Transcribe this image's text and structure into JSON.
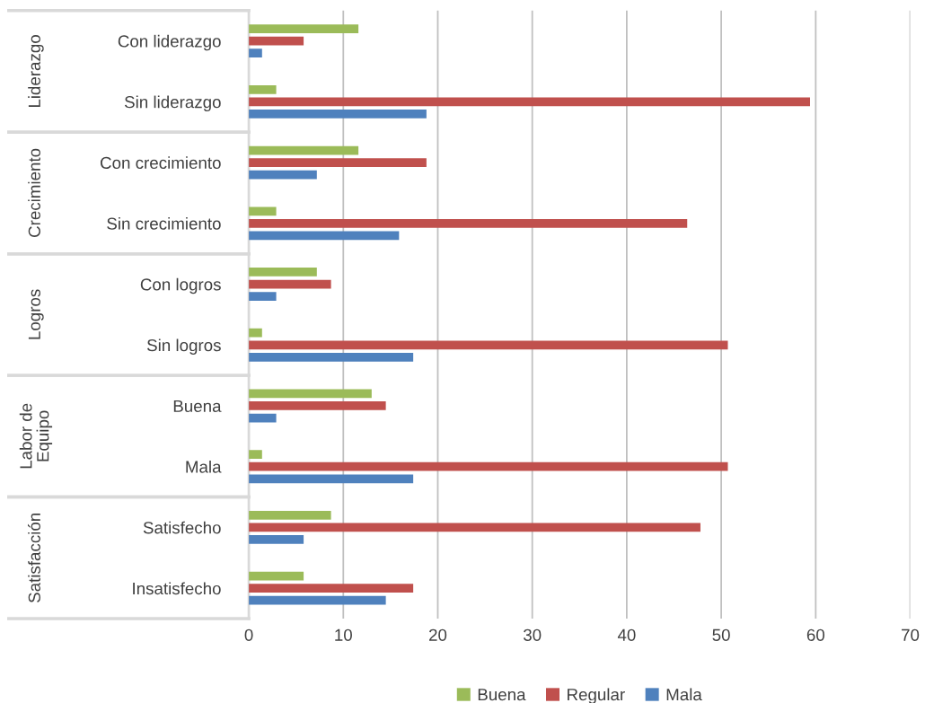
{
  "chart_data": {
    "type": "bar",
    "orientation": "horizontal",
    "categories": [
      "Con liderazgo",
      "Sin liderazgo",
      "Con crecimiento",
      "Sin crecimiento",
      "Con logros",
      "Sin logros",
      "Buena",
      "Mala",
      "Satisfecho",
      "Insatisfecho"
    ],
    "series": [
      {
        "name": "Buena",
        "color": "#9bbb59",
        "values": [
          11.6,
          2.9,
          11.6,
          2.9,
          7.2,
          1.4,
          13.0,
          1.4,
          8.7,
          5.8
        ]
      },
      {
        "name": "Regular",
        "color": "#c0504d",
        "values": [
          5.8,
          59.4,
          18.8,
          46.4,
          8.7,
          50.7,
          14.5,
          50.7,
          47.8,
          17.4
        ]
      },
      {
        "name": "Mala",
        "color": "#4f81bd",
        "values": [
          1.4,
          18.8,
          7.2,
          15.9,
          2.9,
          17.4,
          2.9,
          17.4,
          5.8,
          14.5
        ]
      }
    ],
    "annotations": [
      "Liderazgo",
      "Crecimiento",
      "Logros",
      "Labor de\nEquipo",
      "Satisfacción"
    ],
    "xlim": [
      0,
      70
    ],
    "xticks": [
      0,
      10,
      20,
      30,
      40,
      50,
      60,
      70
    ],
    "grid": "x",
    "legend": "bottom"
  }
}
